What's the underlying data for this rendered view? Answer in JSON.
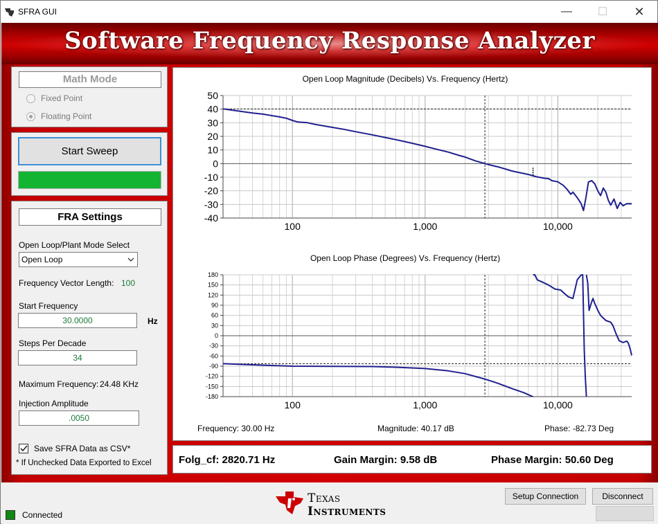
{
  "window": {
    "title": "SFRA GUI"
  },
  "banner": {
    "title": "Software Frequency Response Analyzer"
  },
  "math_mode": {
    "title": "Math Mode",
    "options": [
      "Fixed Point",
      "Floating Point"
    ],
    "selected": "Floating Point"
  },
  "sweep": {
    "button_label": "Start Sweep",
    "progress_fraction": 1.0,
    "progress_color": "#12b432"
  },
  "settings": {
    "title": "FRA Settings",
    "mode_label": "Open Loop/Plant Mode Select",
    "mode_value": "Open Loop",
    "freq_vector_label": "Frequency Vector Length:",
    "freq_vector_value": "100",
    "start_freq_label": "Start Frequency",
    "start_freq_value": "30.0000",
    "start_freq_unit": "Hz",
    "steps_label": "Steps Per Decade",
    "steps_value": "34",
    "max_freq_label": "Maximum Frequency:",
    "max_freq_value": "24.48 KHz",
    "inj_label": "Injection Amplitude",
    "inj_value": ".0050",
    "save_label": "Save SFRA Data as CSV*",
    "save_checked": true,
    "note": "* If Unchecked Data Exported to Excel"
  },
  "readout": {
    "frequency": "Frequency: 30.00 Hz",
    "magnitude": "Magnitude: 40.17 dB",
    "phase": "Phase: -82.73 Deg"
  },
  "margins": {
    "fcf": "Folg_cf: 2820.71 Hz",
    "gain": "Gain Margin: 9.58 dB",
    "phase": "Phase Margin: 50.60 Deg"
  },
  "status": {
    "connected_label": "Connected",
    "indicator_color": "#118811",
    "setup_button": "Setup Connection",
    "disconnect_button": "Disconnect"
  },
  "logo": {
    "line1": "Texas",
    "line2": "Instruments"
  },
  "chart_data": [
    {
      "type": "line",
      "title": "Open Loop Magnitude (Decibels) Vs. Frequency (Hertz)",
      "x_scale": "log",
      "xlim": [
        30,
        36000
      ],
      "ylim": [
        -40,
        50
      ],
      "yticks": [
        50,
        40,
        30,
        20,
        10,
        0,
        -10,
        -20,
        -30,
        -40
      ],
      "xtick_labels": [
        {
          "v": 100,
          "label": "100"
        },
        {
          "v": 1000,
          "label": "1,000"
        },
        {
          "v": 10000,
          "label": "10,000"
        }
      ],
      "grid": true,
      "crosshair": {
        "x": 2820.71,
        "y": 40.17
      },
      "marker_x": 6500,
      "series": [
        {
          "color": "#1f1f8f",
          "points": [
            [
              30,
              40.2
            ],
            [
              40,
              38.5
            ],
            [
              50,
              37.2
            ],
            [
              60,
              36.3
            ],
            [
              80,
              34.3
            ],
            [
              90,
              33.3
            ],
            [
              100,
              31.7
            ],
            [
              110,
              30.5
            ],
            [
              130,
              30
            ],
            [
              150,
              28.7
            ],
            [
              200,
              26.6
            ],
            [
              250,
              25
            ],
            [
              300,
              23.4
            ],
            [
              400,
              21.1
            ],
            [
              500,
              19.2
            ],
            [
              600,
              17.6
            ],
            [
              700,
              16.2
            ],
            [
              800,
              14.9
            ],
            [
              1000,
              12.7
            ],
            [
              1200,
              10.7
            ],
            [
              1500,
              8.4
            ],
            [
              1800,
              6
            ],
            [
              2000,
              4.8
            ],
            [
              2400,
              2
            ],
            [
              2820,
              0
            ],
            [
              3200,
              -1.4
            ],
            [
              3600,
              -2.6
            ],
            [
              4000,
              -3.9
            ],
            [
              4500,
              -5.4
            ],
            [
              5000,
              -6.4
            ],
            [
              5500,
              -7.2
            ],
            [
              6000,
              -8
            ],
            [
              6500,
              -9
            ],
            [
              7000,
              -9.8
            ],
            [
              7500,
              -10.3
            ],
            [
              8000,
              -10.8
            ],
            [
              8500,
              -11
            ],
            [
              9000,
              -12.5
            ],
            [
              10000,
              -13.4
            ],
            [
              11000,
              -16
            ],
            [
              11800,
              -19.2
            ],
            [
              12500,
              -22.5
            ],
            [
              13000,
              -21
            ],
            [
              14000,
              -25
            ],
            [
              15000,
              -29.5
            ],
            [
              15600,
              -34.5
            ],
            [
              16200,
              -26
            ],
            [
              17000,
              -13.5
            ],
            [
              18000,
              -12.5
            ],
            [
              19000,
              -15
            ],
            [
              20000,
              -20
            ],
            [
              21000,
              -23.5
            ],
            [
              22000,
              -18
            ],
            [
              23000,
              -21
            ],
            [
              24000,
              -27
            ],
            [
              25000,
              -30.5
            ],
            [
              26500,
              -26
            ],
            [
              28000,
              -33
            ],
            [
              29500,
              -28.5
            ],
            [
              31000,
              -31
            ],
            [
              33000,
              -29.5
            ],
            [
              36000,
              -29.5
            ]
          ]
        }
      ]
    },
    {
      "type": "line",
      "title": "Open Loop Phase (Degrees) Vs. Frequency (Hertz)",
      "x_scale": "log",
      "xlim": [
        30,
        36000
      ],
      "ylim": [
        -180,
        180
      ],
      "yticks": [
        180,
        150,
        120,
        90,
        60,
        30,
        0,
        -30,
        -60,
        -90,
        -120,
        -150,
        -180
      ],
      "xtick_labels": [
        {
          "v": 100,
          "label": "100"
        },
        {
          "v": 1000,
          "label": "1,000"
        },
        {
          "v": 10000,
          "label": "10,000"
        }
      ],
      "grid": true,
      "crosshair": {
        "x": 2820.71,
        "y": -82.73
      },
      "series": [
        {
          "color": "#1f1f8f",
          "points": [
            [
              30,
              -82.7
            ],
            [
              50,
              -86
            ],
            [
              100,
              -90
            ],
            [
              200,
              -90.5
            ],
            [
              400,
              -91
            ],
            [
              600,
              -93
            ],
            [
              1000,
              -97
            ],
            [
              1500,
              -104
            ],
            [
              2000,
              -112
            ],
            [
              2820,
              -128
            ],
            [
              3500,
              -140
            ],
            [
              4500,
              -156
            ],
            [
              5500,
              -168
            ],
            [
              6300,
              -178
            ],
            [
              6500,
              -180
            ],
            null,
            [
              6500,
              180
            ],
            [
              6700,
              180
            ],
            [
              7000,
              165
            ],
            [
              7500,
              160
            ],
            [
              8500,
              150
            ],
            [
              9500,
              138
            ],
            [
              10500,
              135
            ],
            [
              11200,
              125
            ],
            [
              12000,
              115
            ],
            [
              13000,
              110
            ],
            [
              14000,
              165
            ],
            [
              15000,
              180
            ],
            null,
            [
              15000,
              180
            ],
            [
              15400,
              180
            ],
            [
              15800,
              -40
            ],
            [
              16100,
              -120
            ],
            [
              16400,
              -180
            ],
            null,
            [
              16400,
              180
            ],
            [
              16800,
              155
            ],
            [
              17200,
              75
            ],
            [
              17800,
              95
            ],
            [
              18400,
              110
            ],
            [
              19000,
              95
            ],
            [
              20000,
              75
            ],
            [
              21000,
              60
            ],
            [
              23000,
              45
            ],
            [
              25000,
              40
            ],
            [
              26000,
              30
            ],
            [
              27500,
              5
            ],
            [
              29000,
              -15
            ],
            [
              31000,
              -20
            ],
            [
              33000,
              -16
            ],
            [
              34000,
              -22
            ],
            [
              35000,
              -38
            ],
            [
              36000,
              -58
            ]
          ]
        }
      ]
    }
  ]
}
